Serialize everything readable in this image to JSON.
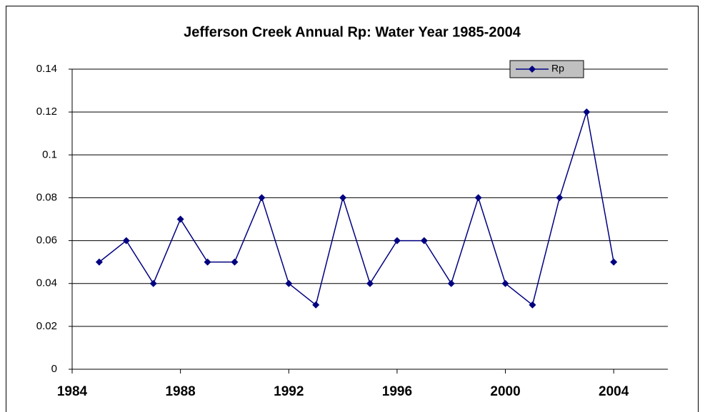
{
  "chart_data": {
    "type": "line",
    "title": "Jefferson Creek Annual Rp: Water Year 1985-2004",
    "x": [
      1985,
      1986,
      1987,
      1988,
      1989,
      1990,
      1991,
      1992,
      1993,
      1994,
      1995,
      1996,
      1997,
      1998,
      1999,
      2000,
      2001,
      2002,
      2003,
      2004
    ],
    "series": [
      {
        "name": "Rp",
        "color": "#000080",
        "values": [
          0.05,
          0.06,
          0.04,
          0.07,
          0.05,
          0.05,
          0.08,
          0.04,
          0.03,
          0.08,
          0.04,
          0.06,
          0.06,
          0.04,
          0.08,
          0.04,
          0.03,
          0.08,
          0.12,
          0.05
        ]
      }
    ],
    "xlim": [
      1984,
      2006
    ],
    "xticks": [
      1984,
      1988,
      1992,
      1996,
      2000,
      2004
    ],
    "ylim": [
      0,
      0.14
    ],
    "yticks": [
      0,
      0.02,
      0.04,
      0.06,
      0.08,
      0.1,
      0.12,
      0.14
    ],
    "grid": true,
    "legend": "top-right"
  }
}
